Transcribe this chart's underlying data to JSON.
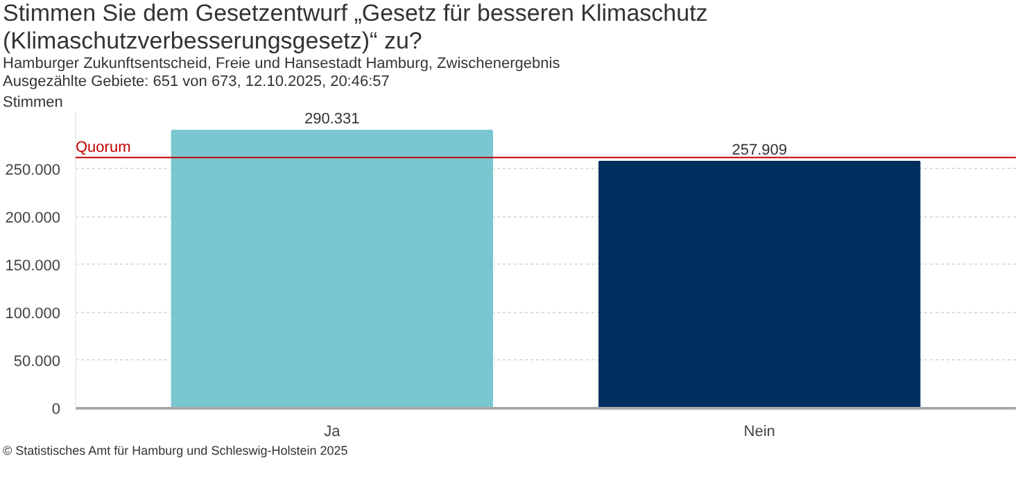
{
  "chart_data": {
    "type": "bar",
    "title": "Stimmen Sie dem Gesetzentwurf „Gesetz für besseren Klimaschutz\n(Klimaschutzverbesserungsgesetz)“ zu?",
    "subtitle": "Hamburger Zukunftsentscheid, Freie und Hansestadt Hamburg, Zwischenergebnis\nAusgezählte Gebiete: 651 von 673, 12.10.2025, 20:46:57",
    "ylabel": "Stimmen",
    "categories": [
      "Ja",
      "Nein"
    ],
    "values": [
      290331,
      257909
    ],
    "colors": [
      "#79c6d0",
      "#002f5f"
    ],
    "value_labels": [
      "290.331",
      "257.909"
    ],
    "ylim": [
      0,
      310000
    ],
    "yticks": [
      {
        "value": 0,
        "label": "0"
      },
      {
        "value": 50000,
        "label": "50.000"
      },
      {
        "value": 100000,
        "label": "100.000"
      },
      {
        "value": 150000,
        "label": "150.000"
      },
      {
        "value": 200000,
        "label": "200.000"
      },
      {
        "value": 250000,
        "label": "250.000"
      }
    ],
    "grid": "y",
    "ref_lines": [
      {
        "axis": "y",
        "value": 262000,
        "label": "Quorum",
        "color": "#c00000"
      }
    ],
    "annotations": [
      "© Statistisches Amt für Hamburg und Schleswig-Holstein 2025"
    ]
  }
}
